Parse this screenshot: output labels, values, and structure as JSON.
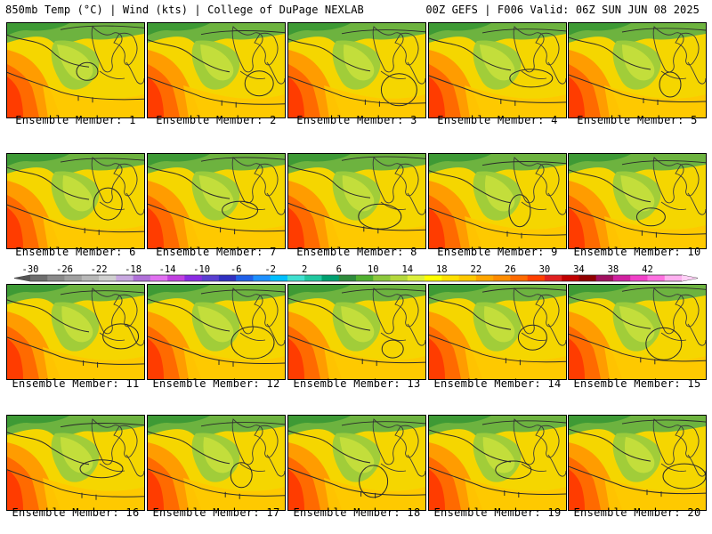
{
  "header": {
    "left": "850mb Temp (°C) | Wind (kts) | College of DuPage NEXLAB",
    "right": "00Z GEFS | F006 Valid: 06Z SUN JUN 08 2025"
  },
  "members": [
    "Ensemble Member: 1",
    "Ensemble Member: 2",
    "Ensemble Member: 3",
    "Ensemble Member: 4",
    "Ensemble Member: 5",
    "Ensemble Member: 6",
    "Ensemble Member: 7",
    "Ensemble Member: 8",
    "Ensemble Member: 9",
    "Ensemble Member: 10",
    "Ensemble Member: 11",
    "Ensemble Member: 12",
    "Ensemble Member: 13",
    "Ensemble Member: 14",
    "Ensemble Member: 15",
    "Ensemble Member: 16",
    "Ensemble Member: 17",
    "Ensemble Member: 18",
    "Ensemble Member: 19",
    "Ensemble Member: 20"
  ],
  "colorbar": {
    "labels": [
      "-30",
      "-26",
      "-22",
      "-18",
      "-14",
      "-10",
      "-6",
      "-2",
      "2",
      "6",
      "10",
      "14",
      "18",
      "22",
      "26",
      "30",
      "34",
      "38",
      "42"
    ],
    "colors": [
      "#6e6e6e",
      "#8a8a8a",
      "#a0a0a0",
      "#b8b8b8",
      "#cfcfcf",
      "#c8a8e0",
      "#b070d8",
      "#e070f0",
      "#c040e0",
      "#8a2be2",
      "#5a3fd0",
      "#3030c0",
      "#2060e8",
      "#1e90ff",
      "#00bfff",
      "#40e0d0",
      "#20c8a0",
      "#00a070",
      "#2e8b3c",
      "#50b030",
      "#8cc83c",
      "#b4d83c",
      "#dcef3c",
      "#ffff00",
      "#ffe000",
      "#ffc800",
      "#ffa500",
      "#ff8c00",
      "#ff6a00",
      "#ff4000",
      "#e02020",
      "#c00000",
      "#900000",
      "#a01060",
      "#d020a0",
      "#f040c8",
      "#ff70e0",
      "#ffb0f0"
    ]
  }
}
